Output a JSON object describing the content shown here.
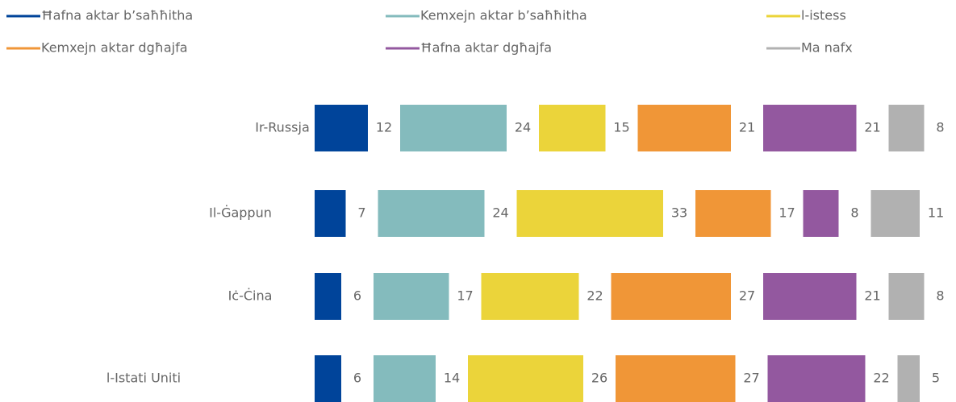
{
  "chart_data": {
    "type": "bar",
    "orientation": "horizontal",
    "stacked": true,
    "categories": [
      "Ir-Russja",
      "Il-Ġappun",
      "Iċ-Ċina",
      "l-Istati Uniti"
    ],
    "series": [
      {
        "name": "Ħafna aktar b’saħħitha",
        "color": "#00449a",
        "values": [
          12,
          7,
          6,
          6
        ]
      },
      {
        "name": "Kemxejn aktar b’saħħitha",
        "color": "#84bbbd",
        "values": [
          24,
          24,
          17,
          14
        ]
      },
      {
        "name": "l-istess",
        "color": "#ebd43a",
        "values": [
          15,
          33,
          22,
          26
        ]
      },
      {
        "name": "Kemxejn aktar dgħajfa",
        "color": "#f09637",
        "values": [
          21,
          17,
          27,
          27
        ]
      },
      {
        "name": "Ħafna aktar dgħajfa",
        "color": "#93589f",
        "values": [
          21,
          8,
          21,
          22
        ]
      },
      {
        "name": "Ma nafx",
        "color": "#b1b1b1",
        "values": [
          8,
          11,
          8,
          5
        ]
      }
    ],
    "legend": "top"
  }
}
